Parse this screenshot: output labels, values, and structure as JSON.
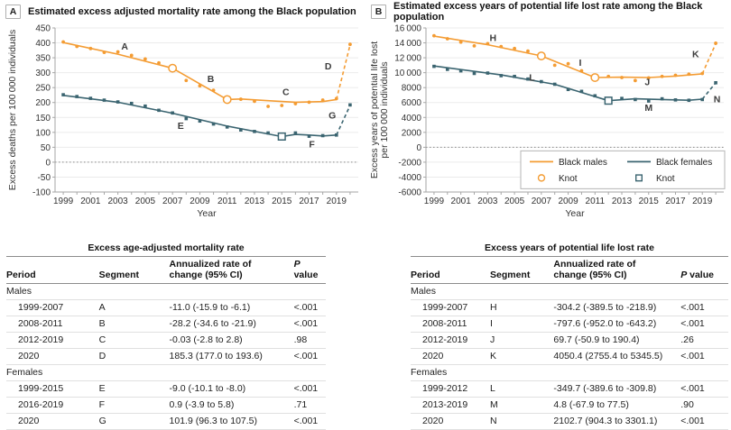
{
  "panels": [
    {
      "badge": "A",
      "title": "Estimated excess adjusted mortality rate among the Black population"
    },
    {
      "badge": "B",
      "title": "Estimated excess years of potential life lost rate among the Black population"
    }
  ],
  "colors": {
    "males": "#F49C33",
    "females": "#3A6470",
    "axis": "#a6a6a6",
    "grid": "#ebebeb",
    "zero": "#8a8a8a"
  },
  "chart_data": [
    {
      "type": "line",
      "title": "Estimated excess adjusted mortality rate among the Black population",
      "xlabel": "Year",
      "ylabel_lines": [
        "Excess deaths per 100 000 individuals"
      ],
      "ylim": [
        -100,
        450
      ],
      "yticks": [
        450,
        400,
        350,
        300,
        250,
        200,
        150,
        100,
        50,
        0,
        -50,
        -100
      ],
      "ytick_labels": [
        "450",
        "400",
        "350",
        "300",
        "250",
        "200",
        "150",
        "100",
        "50",
        "0",
        "-50",
        "-100"
      ],
      "xrange": [
        1998.4,
        2020.6
      ],
      "xticks_minor": [
        1999,
        2000,
        2001,
        2002,
        2003,
        2004,
        2005,
        2006,
        2007,
        2008,
        2009,
        2010,
        2011,
        2012,
        2013,
        2014,
        2015,
        2016,
        2017,
        2018,
        2019,
        2020
      ],
      "xticks_labeled": [
        1999,
        2001,
        2003,
        2005,
        2007,
        2009,
        2011,
        2013,
        2015,
        2017,
        2019
      ],
      "zero_line": true,
      "series": [
        {
          "name": "Black males",
          "color": "#F49C33",
          "dot_shape": "circle",
          "knot_shape": "circle",
          "dots": [
            [
              1999,
              403
            ],
            [
              2000,
              388
            ],
            [
              2001,
              381
            ],
            [
              2002,
              368
            ],
            [
              2003,
              370
            ],
            [
              2004,
              358
            ],
            [
              2005,
              346
            ],
            [
              2006,
              333
            ],
            [
              2008,
              274
            ],
            [
              2009,
              256
            ],
            [
              2010,
              241
            ],
            [
              2012,
              211
            ],
            [
              2013,
              204
            ],
            [
              2014,
              187
            ],
            [
              2015,
              190
            ],
            [
              2016,
              196
            ],
            [
              2017,
              201
            ],
            [
              2018,
              208
            ],
            [
              2019,
              213
            ],
            [
              2020,
              395
            ]
          ],
          "knots": [
            [
              2007,
              315
            ],
            [
              2011,
              210
            ]
          ],
          "trend": [
            {
              "points": [
                [
                  1999,
                  401
                ],
                [
                  2003,
                  362
                ],
                [
                  2007,
                  315
                ]
              ]
            },
            {
              "points": [
                [
                  2007,
                  315
                ],
                [
                  2011,
                  210
                ]
              ]
            },
            {
              "points": [
                [
                  2011,
                  210
                ],
                [
                  2012,
                  212
                ],
                [
                  2014,
                  206
                ],
                [
                  2016,
                  201
                ],
                [
                  2018,
                  203
                ],
                [
                  2019,
                  210
                ]
              ]
            },
            {
              "points": [
                [
                  2019,
                  210
                ],
                [
                  2020,
                  393
                ]
              ],
              "dashed": true
            }
          ],
          "segment_labels": [
            {
              "text": "A",
              "x": 2003.5,
              "y": 388
            },
            {
              "text": "B",
              "x": 2009.8,
              "y": 280
            },
            {
              "text": "C",
              "x": 2015.3,
              "y": 236
            },
            {
              "text": "D",
              "x": 2018.4,
              "y": 322
            }
          ]
        },
        {
          "name": "Black females",
          "color": "#3A6470",
          "dot_shape": "square",
          "knot_shape": "square",
          "dots": [
            [
              1999,
              226
            ],
            [
              2000,
              220
            ],
            [
              2001,
              214
            ],
            [
              2002,
              208
            ],
            [
              2003,
              202
            ],
            [
              2004,
              197
            ],
            [
              2005,
              188
            ],
            [
              2006,
              174
            ],
            [
              2007,
              165
            ],
            [
              2008,
              146
            ],
            [
              2009,
              138
            ],
            [
              2010,
              128
            ],
            [
              2011,
              118
            ],
            [
              2012,
              108
            ],
            [
              2013,
              103
            ],
            [
              2014,
              98
            ],
            [
              2016,
              98
            ],
            [
              2017,
              87
            ],
            [
              2018,
              89
            ],
            [
              2019,
              91
            ],
            [
              2020,
              192
            ]
          ],
          "knots": [
            [
              2015,
              86
            ]
          ],
          "trend": [
            {
              "points": [
                [
                  1999,
                  224
                ],
                [
                  2003,
                  201
                ],
                [
                  2007,
                  164
                ],
                [
                  2011,
                  121
                ],
                [
                  2015,
                  86
                ]
              ]
            },
            {
              "points": [
                [
                  2015,
                  86
                ],
                [
                  2016,
                  93
                ],
                [
                  2017,
                  91
                ],
                [
                  2018,
                  88
                ],
                [
                  2019,
                  91
                ]
              ]
            },
            {
              "points": [
                [
                  2019,
                  91
                ],
                [
                  2020,
                  190
                ]
              ],
              "dashed": true
            }
          ],
          "segment_labels": [
            {
              "text": "E",
              "x": 2007.6,
              "y": 122
            },
            {
              "text": "F",
              "x": 2017.2,
              "y": 60
            },
            {
              "text": "G",
              "x": 2018.7,
              "y": 158
            }
          ]
        }
      ]
    },
    {
      "type": "line",
      "title": "Estimated excess years of potential life lost rate among the Black population",
      "xlabel": "Year",
      "ylabel_lines": [
        "Excess years of potential life lost",
        "per 100 000 individuals"
      ],
      "ylim": [
        -6000,
        16000
      ],
      "yticks": [
        16000,
        14000,
        12000,
        10000,
        8000,
        6000,
        4000,
        2000,
        0,
        -2000,
        -4000,
        -6000
      ],
      "ytick_labels": [
        "16 000",
        "14 000",
        "12 000",
        "10 000",
        "8000",
        "6000",
        "4000",
        "2000",
        "0",
        "-2000",
        "-4000",
        "-6000"
      ],
      "xrange": [
        1998.4,
        2020.6
      ],
      "xticks_minor": [
        1999,
        2000,
        2001,
        2002,
        2003,
        2004,
        2005,
        2006,
        2007,
        2008,
        2009,
        2010,
        2011,
        2012,
        2013,
        2014,
        2015,
        2016,
        2017,
        2018,
        2019,
        2020
      ],
      "xticks_labeled": [
        1999,
        2001,
        2003,
        2005,
        2007,
        2009,
        2011,
        2013,
        2015,
        2017,
        2019
      ],
      "zero_line": true,
      "legend": {
        "knot_label": "Knot"
      },
      "series": [
        {
          "name": "Black males",
          "color": "#F49C33",
          "dot_shape": "circle",
          "knot_shape": "circle",
          "dots": [
            [
              1999,
              14950
            ],
            [
              2000,
              14550
            ],
            [
              2001,
              14100
            ],
            [
              2002,
              13600
            ],
            [
              2003,
              13900
            ],
            [
              2004,
              13500
            ],
            [
              2005,
              13250
            ],
            [
              2006,
              12900
            ],
            [
              2008,
              11000
            ],
            [
              2009,
              11200
            ],
            [
              2010,
              10250
            ],
            [
              2012,
              9500
            ],
            [
              2013,
              9350
            ],
            [
              2014,
              8950
            ],
            [
              2015,
              9300
            ],
            [
              2016,
              9500
            ],
            [
              2017,
              9650
            ],
            [
              2018,
              9800
            ],
            [
              2019,
              9900
            ],
            [
              2020,
              13950
            ]
          ],
          "knots": [
            [
              2007,
              12250
            ],
            [
              2011,
              9350
            ]
          ],
          "trend": [
            {
              "points": [
                [
                  1999,
                  14900
                ],
                [
                  2003,
                  13750
                ],
                [
                  2007,
                  12250
                ]
              ]
            },
            {
              "points": [
                [
                  2007,
                  12250
                ],
                [
                  2011,
                  9350
                ]
              ]
            },
            {
              "points": [
                [
                  2011,
                  9350
                ],
                [
                  2013,
                  9400
                ],
                [
                  2015,
                  9350
                ],
                [
                  2017,
                  9550
                ],
                [
                  2019,
                  9850
                ]
              ]
            },
            {
              "points": [
                [
                  2019,
                  9850
                ],
                [
                  2020,
                  13900
                ]
              ],
              "dashed": true
            }
          ],
          "segment_labels": [
            {
              "text": "H",
              "x": 2003.4,
              "y": 14700
            },
            {
              "text": "I",
              "x": 2009.9,
              "y": 11350
            },
            {
              "text": "J",
              "x": 2014.9,
              "y": 8750
            },
            {
              "text": "K",
              "x": 2018.5,
              "y": 12500
            }
          ]
        },
        {
          "name": "Black females",
          "color": "#3A6470",
          "dot_shape": "square",
          "knot_shape": "square",
          "dots": [
            [
              1999,
              10850
            ],
            [
              2000,
              10450
            ],
            [
              2001,
              10250
            ],
            [
              2002,
              9900
            ],
            [
              2003,
              9950
            ],
            [
              2004,
              9600
            ],
            [
              2005,
              9500
            ],
            [
              2006,
              9150
            ],
            [
              2007,
              8800
            ],
            [
              2008,
              8450
            ],
            [
              2009,
              7750
            ],
            [
              2010,
              7500
            ],
            [
              2011,
              6900
            ],
            [
              2013,
              6550
            ],
            [
              2014,
              6400
            ],
            [
              2015,
              6200
            ],
            [
              2016,
              6500
            ],
            [
              2017,
              6350
            ],
            [
              2018,
              6300
            ],
            [
              2019,
              6400
            ],
            [
              2020,
              8650
            ]
          ],
          "knots": [
            [
              2012,
              6250
            ]
          ],
          "trend": [
            {
              "points": [
                [
                  1999,
                  10900
                ],
                [
                  2004,
                  9700
                ],
                [
                  2008,
                  8450
                ],
                [
                  2012,
                  6250
                ]
              ]
            },
            {
              "points": [
                [
                  2012,
                  6250
                ],
                [
                  2014,
                  6500
                ],
                [
                  2016,
                  6400
                ],
                [
                  2018,
                  6300
                ],
                [
                  2019,
                  6450
                ]
              ]
            },
            {
              "points": [
                [
                  2019,
                  6450
                ],
                [
                  2020,
                  8650
                ]
              ],
              "dashed": true
            }
          ],
          "segment_labels": [
            {
              "text": "L",
              "x": 2006.3,
              "y": 9400
            },
            {
              "text": "M",
              "x": 2015.0,
              "y": 5300
            },
            {
              "text": "N",
              "x": 2020.1,
              "y": 6450
            }
          ]
        }
      ]
    }
  ],
  "tables": [
    {
      "title": "Excess age-adjusted mortality rate",
      "header": {
        "period": "Period",
        "segment": "Segment",
        "rate1": "Annualized rate of",
        "rate2": "change (95% CI)",
        "p_italic": "P",
        "p_rest": " value"
      },
      "rows": [
        {
          "group": "Males"
        },
        {
          "period": "1999-2007",
          "segment": "A",
          "rate": "-11.0 (-15.9 to -6.1)",
          "p": "<.001"
        },
        {
          "period": "2008-2011",
          "segment": "B",
          "rate": "-28.2 (-34.6 to -21.9)",
          "p": "<.001"
        },
        {
          "period": "2012-2019",
          "segment": "C",
          "rate": "-0.03 (-2.8 to 2.8)",
          "p": ".98"
        },
        {
          "period": "2020",
          "segment": "D",
          "rate": "185.3 (177.0 to 193.6)",
          "p": "<.001"
        },
        {
          "group": "Females"
        },
        {
          "period": "1999-2015",
          "segment": "E",
          "rate": "-9.0 (-10.1 to -8.0)",
          "p": "<.001"
        },
        {
          "period": "2016-2019",
          "segment": "F",
          "rate": "0.9 (-3.9 to 5.8)",
          "p": ".71"
        },
        {
          "period": "2020",
          "segment": "G",
          "rate": "101.9 (96.3 to 107.5)",
          "p": "<.001"
        }
      ]
    },
    {
      "title": "Excess years of potential life lost rate",
      "header": {
        "period": "Period",
        "segment": "Segment",
        "rate1": "Annualized rate of",
        "rate2": "change (95% CI)",
        "p_italic": "P",
        "p_rest": " value"
      },
      "rows": [
        {
          "group": "Males"
        },
        {
          "period": "1999-2007",
          "segment": "H",
          "rate": "-304.2 (-389.5 to -218.9)",
          "p": "<.001"
        },
        {
          "period": "2008-2011",
          "segment": "I",
          "rate": "-797.6 (-952.0 to -643.2)",
          "p": "<.001"
        },
        {
          "period": "2012-2019",
          "segment": "J",
          "rate": "69.7 (-50.9 to 190.4)",
          "p": ".26"
        },
        {
          "period": "2020",
          "segment": "K",
          "rate": "4050.4 (2755.4 to 5345.5)",
          "p": "<.001"
        },
        {
          "group": "Females"
        },
        {
          "period": "1999-2012",
          "segment": "L",
          "rate": "-349.7 (-389.6 to -309.8)",
          "p": "<.001"
        },
        {
          "period": "2013-2019",
          "segment": "M",
          "rate": "4.8 (-67.9 to 77.5)",
          "p": ".90"
        },
        {
          "period": "2020",
          "segment": "N",
          "rate": "2102.7 (904.3 to 3301.1)",
          "p": "<.001"
        }
      ]
    }
  ]
}
